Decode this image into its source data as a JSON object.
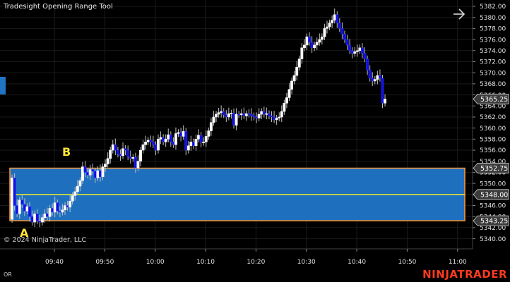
{
  "chart_title": "Tradesight Opening Range Tool",
  "copyright": "© 2024 NinjaTrader, LLC",
  "bottom_left_label": "OR",
  "logo": {
    "text_left": "NINJ",
    "text_mid": "A",
    "text_right": "TRADER",
    "color": "#ff3b1f"
  },
  "icons": {
    "nav": "arrow-right-icon",
    "side": "side-panel-tab-icon"
  },
  "colors": {
    "background": "#000000",
    "range_fill": "#1f6fbf",
    "range_border": "#ff9a2e",
    "mid_line": "#f2ea2a",
    "bull_candle": "#ffffff",
    "bear_candle": "#1010e0"
  },
  "markers": [
    {
      "label": "A",
      "color": "#ffe533"
    },
    {
      "label": "B",
      "color": "#ffe533"
    }
  ],
  "chart_data": {
    "type": "candlestick",
    "instrument": "",
    "ylim": [
      5339,
      5382.8
    ],
    "y_tick_labels": [
      "5382.00",
      "5380.00",
      "5378.00",
      "5376.00",
      "5374.00",
      "5372.00",
      "5370.00",
      "5368.00",
      "5366.00",
      "5364.00",
      "5362.00",
      "5360.00",
      "5358.00",
      "5356.00",
      "5354.00",
      "5352.00",
      "5350.00",
      "5348.00",
      "5346.00",
      "5344.00",
      "5342.00",
      "5340.00"
    ],
    "x_tick_labels": [
      "09:40",
      "09:50",
      "10:00",
      "10:10",
      "10:20",
      "10:30",
      "10:40",
      "10:50",
      "11:00"
    ],
    "x_tick_times_min": [
      0,
      10,
      20,
      30,
      40,
      50,
      60,
      70,
      80
    ],
    "start_offset_min": -8.4,
    "bar_interval_min": 0.5,
    "opening_range": {
      "high": 5352.75,
      "low": 5343.25,
      "mid": 5348.0,
      "start_bar": 0,
      "end_bar": 27
    },
    "price_labels": [
      {
        "value": 5365.25,
        "text": "5365.25",
        "kind": "last"
      },
      {
        "value": 5352.75,
        "text": "5352.75",
        "kind": "or-high"
      },
      {
        "value": 5348.0,
        "text": "5348.00",
        "kind": "or-mid"
      },
      {
        "value": 5343.25,
        "text": "5343.25",
        "kind": "or-low"
      }
    ],
    "closes": [
      5351.0,
      5346.0,
      5344.5,
      5347.0,
      5346.2,
      5345.0,
      5345.8,
      5344.0,
      5343.0,
      5344.5,
      5343.2,
      5343.0,
      5343.8,
      5344.5,
      5344.0,
      5345.5,
      5344.8,
      5346.5,
      5345.0,
      5344.8,
      5345.2,
      5346.0,
      5345.7,
      5346.8,
      5347.8,
      5348.5,
      5349.5,
      5350.5,
      5353.0,
      5352.0,
      5351.5,
      5352.5,
      5352.2,
      5351.0,
      5352.3,
      5351.2,
      5353.0,
      5353.5,
      5354.5,
      5356.0,
      5357.0,
      5356.0,
      5355.3,
      5355.0,
      5356.3,
      5356.0,
      5354.8,
      5354.5,
      5354.7,
      5352.8,
      5354.0,
      5356.0,
      5357.0,
      5357.5,
      5357.8,
      5357.5,
      5357.0,
      5356.0,
      5358.0,
      5358.3,
      5357.5,
      5358.0,
      5358.8,
      5357.5,
      5357.0,
      5359.0,
      5359.2,
      5358.5,
      5359.4,
      5356.0,
      5356.8,
      5357.5,
      5356.8,
      5358.0,
      5358.7,
      5357.4,
      5357.5,
      5358.5,
      5359.5,
      5361.0,
      5362.0,
      5362.5,
      5362.8,
      5363.0,
      5362.4,
      5362.0,
      5362.6,
      5362.7,
      5360.5,
      5362.5,
      5362.4,
      5362.6,
      5362.2,
      5362.6,
      5362.5,
      5362.2,
      5362.0,
      5361.8,
      5362.5,
      5363.0,
      5362.5,
      5362.6,
      5362.2,
      5362.0,
      5361.5,
      5361.8,
      5362.0,
      5363.0,
      5364.5,
      5365.5,
      5367.0,
      5368.5,
      5369.5,
      5371.0,
      5372.5,
      5374.5,
      5375.0,
      5376.5,
      5375.5,
      5374.5,
      5375.0,
      5375.5,
      5376.0,
      5376.5,
      5378.0,
      5378.3,
      5379.0,
      5379.5,
      5380.5,
      5379.0,
      5378.0,
      5377.0,
      5376.0,
      5375.0,
      5374.0,
      5373.5,
      5373.8,
      5374.0,
      5374.5,
      5373.5,
      5372.5,
      5370.5,
      5369.0,
      5368.5,
      5368.8,
      5369.5,
      5369.0,
      5364.5,
      5365.25
    ]
  }
}
